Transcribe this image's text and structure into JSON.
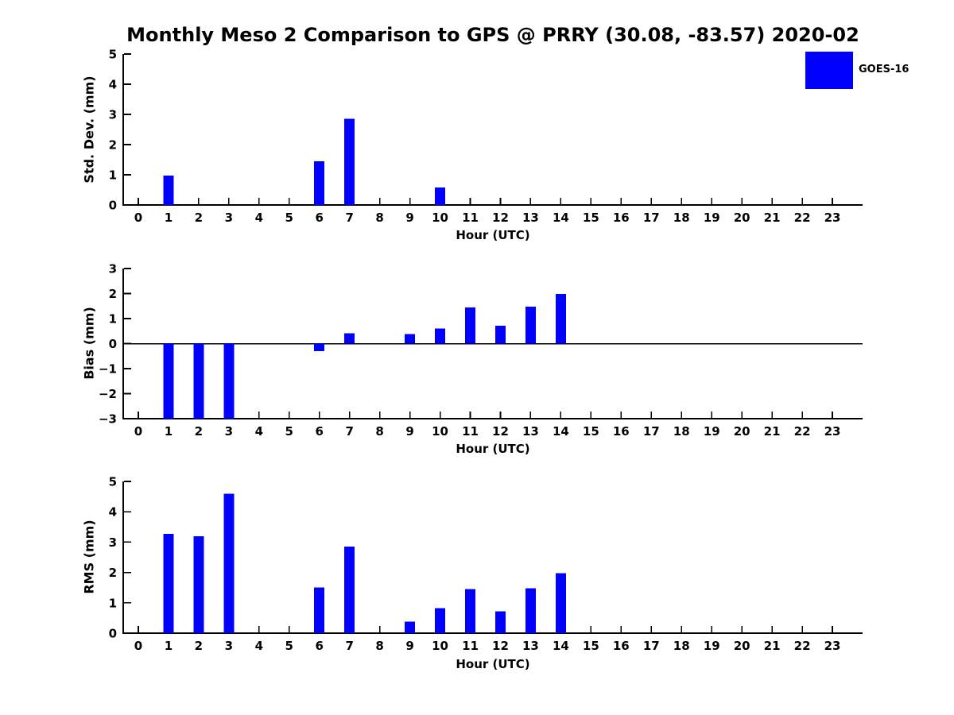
{
  "title": "Monthly Meso 2 Comparison to GPS @ PRRY (30.08, -83.57) 2020-02",
  "legend": {
    "position": "top-right",
    "items": [
      {
        "label": "GOES-16",
        "color": "#0000ff"
      }
    ]
  },
  "colors": {
    "bar": "#0000ff",
    "axis": "#000000",
    "background": "#ffffff"
  },
  "chart_data": [
    {
      "type": "bar",
      "id": "std-dev",
      "series_name": "GOES-16",
      "ylabel": "Std. Dev. (mm)",
      "xlabel": "Hour (UTC)",
      "bar_color": "#0000ff",
      "ylim": [
        0,
        5
      ],
      "yticks": [
        5,
        4,
        3,
        2,
        1,
        0
      ],
      "xlim": [
        -0.5,
        24
      ],
      "grid": false,
      "x": [
        0,
        1,
        2,
        3,
        4,
        5,
        6,
        7,
        8,
        9,
        10,
        11,
        12,
        13,
        14,
        15,
        16,
        17,
        18,
        19,
        20,
        21,
        22,
        23
      ],
      "values": [
        null,
        0.97,
        null,
        null,
        null,
        null,
        1.45,
        2.85,
        null,
        null,
        0.58,
        null,
        null,
        null,
        null,
        null,
        null,
        null,
        null,
        null,
        null,
        null,
        null,
        null
      ]
    },
    {
      "type": "bar",
      "id": "bias",
      "series_name": "GOES-16",
      "ylabel": "Bias (mm)",
      "xlabel": "Hour (UTC)",
      "bar_color": "#0000ff",
      "ylim": [
        -3,
        3
      ],
      "yticks": [
        3,
        2,
        1,
        0,
        -1,
        -2,
        -3
      ],
      "xlim": [
        -0.5,
        24
      ],
      "grid": false,
      "zero_line": true,
      "x": [
        0,
        1,
        2,
        3,
        4,
        5,
        6,
        7,
        8,
        9,
        10,
        11,
        12,
        13,
        14,
        15,
        16,
        17,
        18,
        19,
        20,
        21,
        22,
        23
      ],
      "values": [
        null,
        -3,
        -3,
        -3,
        null,
        null,
        -0.3,
        0.42,
        null,
        0.38,
        0.6,
        1.45,
        0.72,
        1.48,
        1.98,
        null,
        null,
        null,
        null,
        null,
        null,
        null,
        null,
        null
      ],
      "clipped_at_ymin_hours": [
        1,
        2,
        3
      ]
    },
    {
      "type": "bar",
      "id": "rms",
      "series_name": "GOES-16",
      "ylabel": "RMS (mm)",
      "xlabel": "Hour (UTC)",
      "bar_color": "#0000ff",
      "ylim": [
        0,
        5
      ],
      "yticks": [
        5,
        4,
        3,
        2,
        1,
        0
      ],
      "xlim": [
        -0.5,
        24
      ],
      "grid": false,
      "x": [
        0,
        1,
        2,
        3,
        4,
        5,
        6,
        7,
        8,
        9,
        10,
        11,
        12,
        13,
        14,
        15,
        16,
        17,
        18,
        19,
        20,
        21,
        22,
        23
      ],
      "values": [
        null,
        3.27,
        3.2,
        4.6,
        null,
        null,
        1.5,
        2.85,
        null,
        0.38,
        0.83,
        1.45,
        0.72,
        1.48,
        1.98,
        null,
        null,
        null,
        null,
        null,
        null,
        null,
        null,
        null
      ]
    }
  ]
}
